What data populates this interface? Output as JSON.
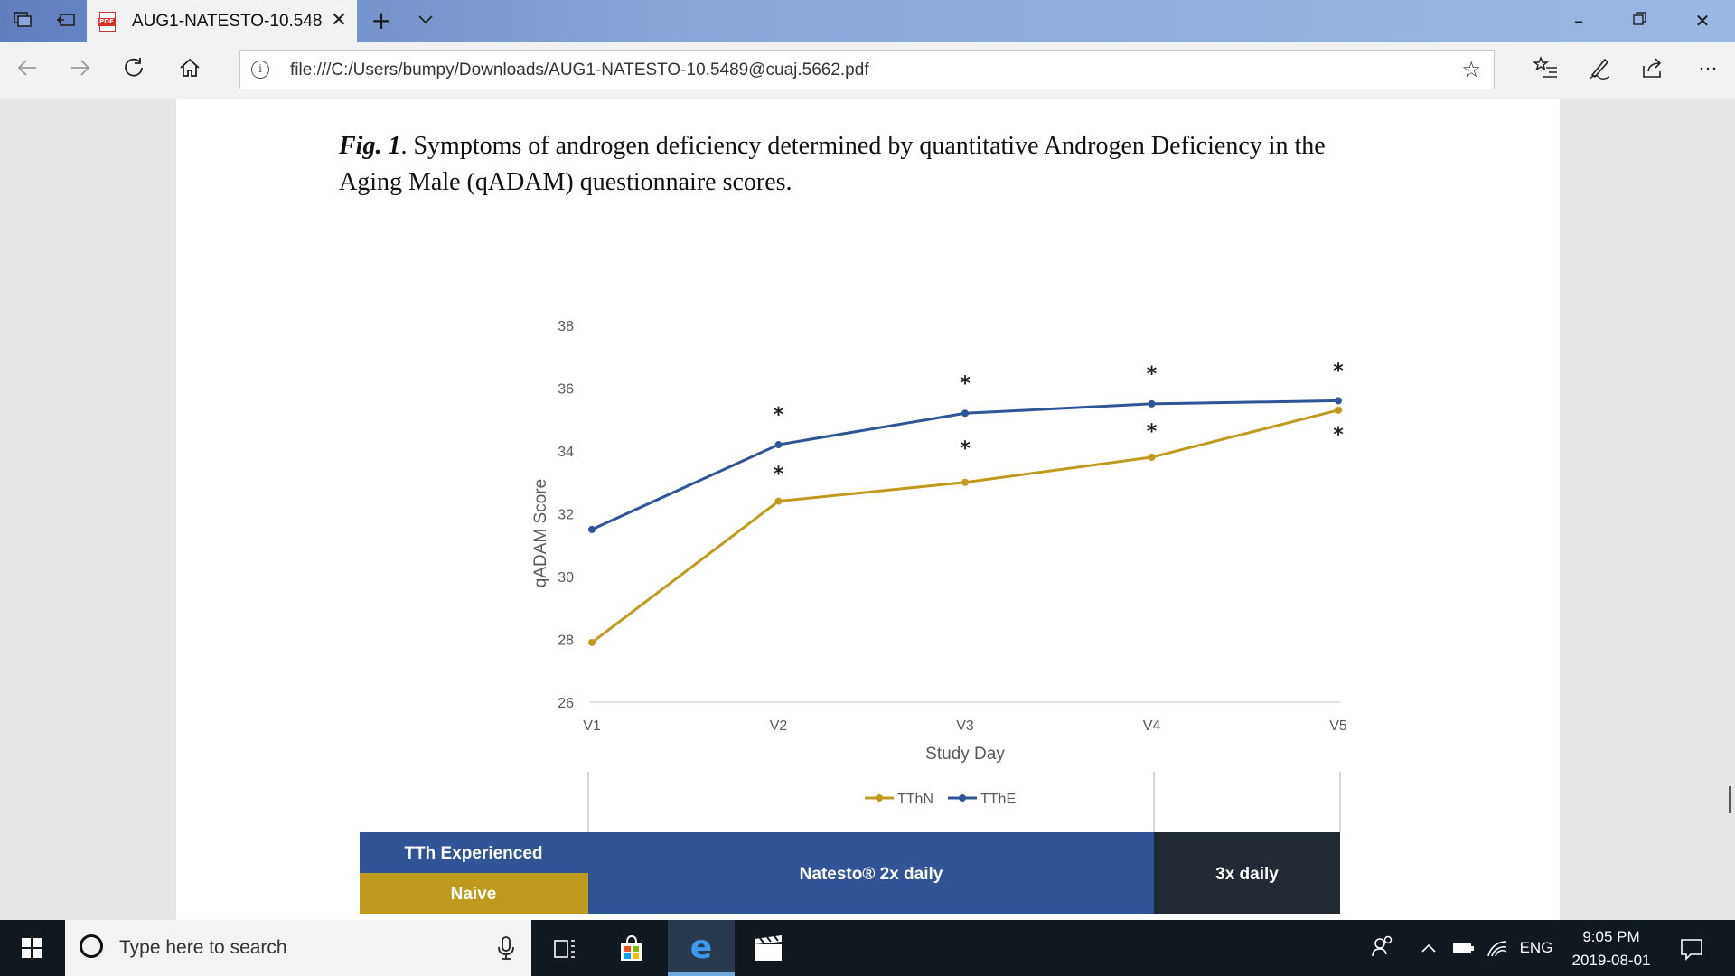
{
  "browser": {
    "tab_title": "AUG1-NATESTO-10.548",
    "tab_icon_label": "PDF",
    "address": "file:///C:/Users/bumpy/Downloads/AUG1-NATESTO-10.5489@cuaj.5662.pdf"
  },
  "document": {
    "caption_fig": "Fig. 1",
    "caption_text": ". Symptoms of androgen deficiency determined by quantitative Androgen Deficiency in the Aging Male (qADAM) questionnaire scores."
  },
  "chart_data": {
    "type": "line",
    "categories": [
      "V1",
      "V2",
      "V3",
      "V4",
      "V5"
    ],
    "series": [
      {
        "name": "TThN",
        "values": [
          27.9,
          32.4,
          33.0,
          33.8,
          35.3
        ],
        "color": "#bf9a1c",
        "significance": [
          "",
          "*",
          "*",
          "*",
          "*"
        ]
      },
      {
        "name": "TThE",
        "values": [
          31.5,
          34.2,
          35.2,
          35.5,
          35.6
        ],
        "color": "#2f5597",
        "significance": [
          "",
          "*",
          "*",
          "*",
          "*"
        ]
      }
    ],
    "xlabel": "Study Day",
    "ylabel": "qADAM Score",
    "yticks": [
      "26",
      "28",
      "30",
      "32",
      "34",
      "36",
      "38"
    ],
    "ylim": [
      26,
      38
    ],
    "grid": false,
    "legend_position": "bottom",
    "significance_symbol": "*"
  },
  "regimen": {
    "experienced_label": "TTh Experienced",
    "naive_label": "Naive",
    "twice_daily_label": "Natesto® 2x daily",
    "thrice_daily_label": "3x daily",
    "colors": {
      "experienced": "#2f5597",
      "naive": "#bf9a1c",
      "thrice": "#222a35"
    }
  },
  "taskbar": {
    "search_placeholder": "Type here to search",
    "language": "ENG",
    "time": "9:05 PM",
    "date": "2019-08-01"
  }
}
